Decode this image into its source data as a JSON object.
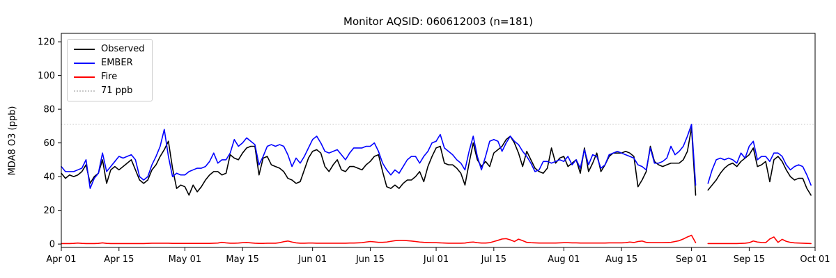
{
  "title": "Monitor AQSID: 060612003 (n=181)",
  "y_axis": {
    "label": "MDA8 O3 (ppb)"
  },
  "legend": {
    "position": "upper-left"
  },
  "chart_data": {
    "type": "line",
    "title": "Monitor AQSID: 060612003 (n=181)",
    "xlabel": "",
    "ylabel": "MDA8 O3 (ppb)",
    "n_points": 181,
    "x_unit": "daily values, day index 0 = Apr 01",
    "xlim_days": [
      0,
      183
    ],
    "ylim": [
      -2,
      125
    ],
    "y_ticks": [
      0,
      20,
      40,
      60,
      80,
      100,
      120
    ],
    "x_ticks": [
      {
        "label": "Apr 01",
        "day": 0
      },
      {
        "label": "Apr 15",
        "day": 14
      },
      {
        "label": "May 01",
        "day": 30
      },
      {
        "label": "May 15",
        "day": 44
      },
      {
        "label": "Jun 01",
        "day": 61
      },
      {
        "label": "Jun 15",
        "day": 75
      },
      {
        "label": "Jul 01",
        "day": 91
      },
      {
        "label": "Jul 15",
        "day": 105
      },
      {
        "label": "Aug 01",
        "day": 122
      },
      {
        "label": "Aug 15",
        "day": 136
      },
      {
        "label": "Sep 01",
        "day": 153
      },
      {
        "label": "Sep 15",
        "day": 167
      },
      {
        "label": "Oct 01",
        "day": 183
      }
    ],
    "grid": false,
    "legend_position": "upper left",
    "threshold_line": {
      "label": "71 ppb",
      "value": 71,
      "color": "#c8c8c8",
      "style": "dotted"
    },
    "missing_days_note": "two null days in early September create the gap (n=181 of 183 days)",
    "series": [
      {
        "name": "Observed",
        "color": "#000000",
        "values": [
          42,
          39,
          41,
          40,
          41,
          43,
          47,
          36,
          40,
          42,
          50,
          36,
          44,
          46,
          44,
          46,
          48,
          50,
          44,
          38,
          36,
          38,
          44,
          47,
          52,
          56,
          61,
          45,
          33,
          35,
          34,
          29,
          35,
          31,
          34,
          38,
          41,
          43,
          43,
          41,
          42,
          53,
          51,
          50,
          54,
          57,
          58,
          58,
          41,
          51,
          52,
          47,
          46,
          45,
          43,
          39,
          38,
          36,
          37,
          44,
          51,
          55,
          56,
          54,
          46,
          43,
          47,
          50,
          44,
          43,
          46,
          46,
          45,
          44,
          47,
          49,
          52,
          53,
          43,
          34,
          33,
          35,
          33,
          36,
          38,
          38,
          40,
          43,
          37,
          46,
          52,
          57,
          58,
          48,
          47,
          47,
          45,
          42,
          35,
          48,
          60,
          50,
          46,
          49,
          46,
          54,
          56,
          58,
          62,
          64,
          60,
          54,
          46,
          55,
          50,
          45,
          43,
          42,
          45,
          57,
          48,
          51,
          52,
          46,
          48,
          50,
          42,
          57,
          43,
          48,
          54,
          43,
          47,
          52,
          54,
          54,
          54,
          55,
          54,
          52,
          34,
          38,
          43,
          58,
          49,
          47,
          46,
          47,
          48,
          48,
          48,
          50,
          55,
          69,
          29,
          null,
          null,
          32,
          35,
          38,
          42,
          45,
          47,
          48,
          46,
          49,
          51,
          53,
          57,
          46,
          47,
          49,
          37,
          50,
          52,
          49,
          44,
          40,
          38,
          39,
          39,
          33,
          29
        ]
      },
      {
        "name": "EMBER",
        "color": "#0000ff",
        "values": [
          46,
          43,
          43,
          43,
          44,
          45,
          50,
          33,
          39,
          42,
          54,
          43,
          46,
          49,
          52,
          51,
          52,
          53,
          50,
          40,
          38,
          40,
          47,
          52,
          58,
          68,
          52,
          40,
          42,
          41,
          41,
          43,
          44,
          45,
          45,
          46,
          49,
          54,
          48,
          50,
          50,
          54,
          62,
          58,
          60,
          63,
          61,
          59,
          47,
          52,
          58,
          59,
          58,
          59,
          58,
          53,
          46,
          51,
          48,
          52,
          57,
          62,
          64,
          60,
          55,
          54,
          55,
          56,
          53,
          50,
          54,
          57,
          57,
          57,
          58,
          58,
          60,
          55,
          48,
          44,
          41,
          44,
          42,
          46,
          50,
          52,
          52,
          48,
          52,
          55,
          60,
          61,
          65,
          57,
          55,
          53,
          50,
          48,
          44,
          55,
          64,
          52,
          44,
          52,
          61,
          62,
          61,
          55,
          60,
          64,
          61,
          59,
          55,
          52,
          48,
          43,
          44,
          49,
          49,
          48,
          49,
          50,
          49,
          52,
          47,
          50,
          45,
          56,
          47,
          53,
          52,
          45,
          47,
          53,
          54,
          55,
          54,
          53,
          52,
          51,
          47,
          46,
          44,
          57,
          48,
          48,
          49,
          51,
          58,
          53,
          55,
          58,
          64,
          71,
          35,
          null,
          null,
          36,
          44,
          50,
          51,
          50,
          51,
          50,
          48,
          54,
          51,
          58,
          61,
          50,
          52,
          52,
          49,
          54,
          54,
          52,
          47,
          44,
          46,
          47,
          46,
          41,
          35
        ]
      },
      {
        "name": "Fire",
        "color": "#ff0000",
        "values": [
          0.3,
          0.3,
          0.3,
          0.4,
          0.6,
          0.4,
          0.3,
          0.3,
          0.3,
          0.4,
          0.7,
          0.4,
          0.3,
          0.3,
          0.3,
          0.3,
          0.3,
          0.3,
          0.3,
          0.3,
          0.3,
          0.4,
          0.5,
          0.5,
          0.5,
          0.5,
          0.5,
          0.4,
          0.4,
          0.4,
          0.4,
          0.4,
          0.4,
          0.4,
          0.4,
          0.4,
          0.4,
          0.5,
          0.6,
          1.0,
          0.7,
          0.5,
          0.5,
          0.6,
          0.8,
          0.9,
          0.7,
          0.5,
          0.4,
          0.4,
          0.5,
          0.5,
          0.5,
          0.8,
          1.4,
          1.8,
          1.2,
          0.7,
          0.5,
          0.5,
          0.6,
          0.6,
          0.5,
          0.5,
          0.5,
          0.5,
          0.5,
          0.5,
          0.5,
          0.5,
          0.6,
          0.6,
          0.7,
          0.8,
          1.2,
          1.5,
          1.3,
          1.0,
          1.0,
          1.2,
          1.6,
          2.0,
          2.2,
          2.2,
          2.0,
          1.8,
          1.5,
          1.2,
          1.0,
          0.9,
          0.8,
          0.8,
          0.7,
          0.6,
          0.5,
          0.5,
          0.5,
          0.5,
          0.6,
          1.0,
          1.2,
          0.8,
          0.6,
          0.6,
          0.8,
          1.5,
          2.2,
          3.0,
          3.2,
          2.5,
          1.5,
          2.9,
          2.0,
          1.0,
          0.8,
          0.7,
          0.6,
          0.6,
          0.6,
          0.6,
          0.6,
          0.7,
          0.8,
          0.8,
          0.7,
          0.7,
          0.6,
          0.6,
          0.6,
          0.6,
          0.6,
          0.6,
          0.6,
          0.7,
          0.7,
          0.7,
          0.7,
          0.8,
          1.2,
          0.9,
          1.5,
          1.8,
          1.0,
          0.8,
          0.8,
          0.8,
          0.8,
          0.9,
          1.0,
          1.5,
          2.0,
          3.0,
          4.2,
          5.2,
          0.8,
          null,
          null,
          0.3,
          0.3,
          0.3,
          0.3,
          0.3,
          0.3,
          0.3,
          0.3,
          0.4,
          0.5,
          0.8,
          1.8,
          1.2,
          0.9,
          0.8,
          3.0,
          4.2,
          1.0,
          2.8,
          1.6,
          1.0,
          0.7,
          0.6,
          0.5,
          0.4,
          0.3
        ]
      }
    ]
  }
}
